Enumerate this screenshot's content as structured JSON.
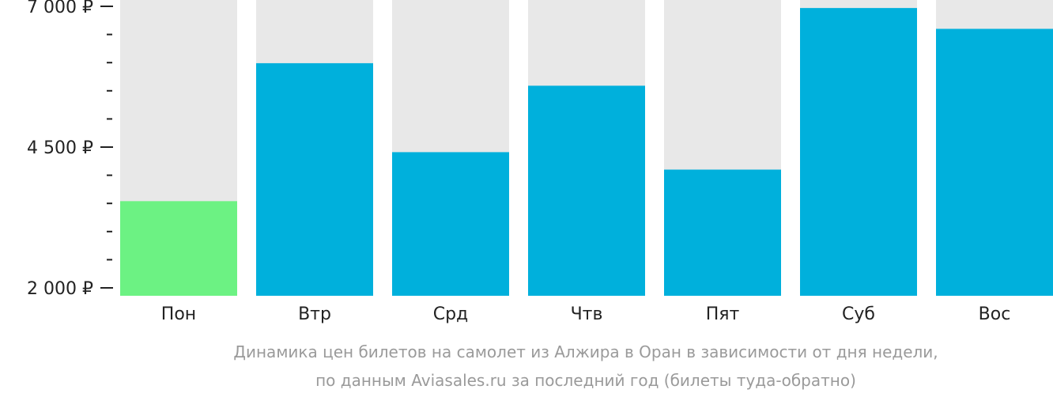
{
  "chart_data": {
    "type": "bar",
    "categories": [
      "Пон",
      "Втр",
      "Срд",
      "Чтв",
      "Пят",
      "Суб",
      "Вос"
    ],
    "values": [
      3540,
      5990,
      4410,
      5590,
      4100,
      6970,
      6600
    ],
    "ylim": [
      2000,
      7000
    ],
    "ytick_values": [
      2000,
      4500,
      7000
    ],
    "ytick_labels": [
      "2 000 ₽",
      "4 500 ₽",
      "7 000 ₽"
    ],
    "minor_tick_step": 500,
    "grid": false,
    "caption_lines": [
      "Динамика цен билетов на самолет из Алжира в Оран в зависимости от дня недели,",
      "по данным Aviasales.ru за последний год (билеты туда-обратно)"
    ],
    "highlight_index": 0,
    "colors": {
      "bar": "#00b0dc",
      "bar_highlight": "#6cf283",
      "bar_background": "#e8e8e8",
      "axis_text": "#222222",
      "caption_text": "#9a9a9a"
    }
  }
}
